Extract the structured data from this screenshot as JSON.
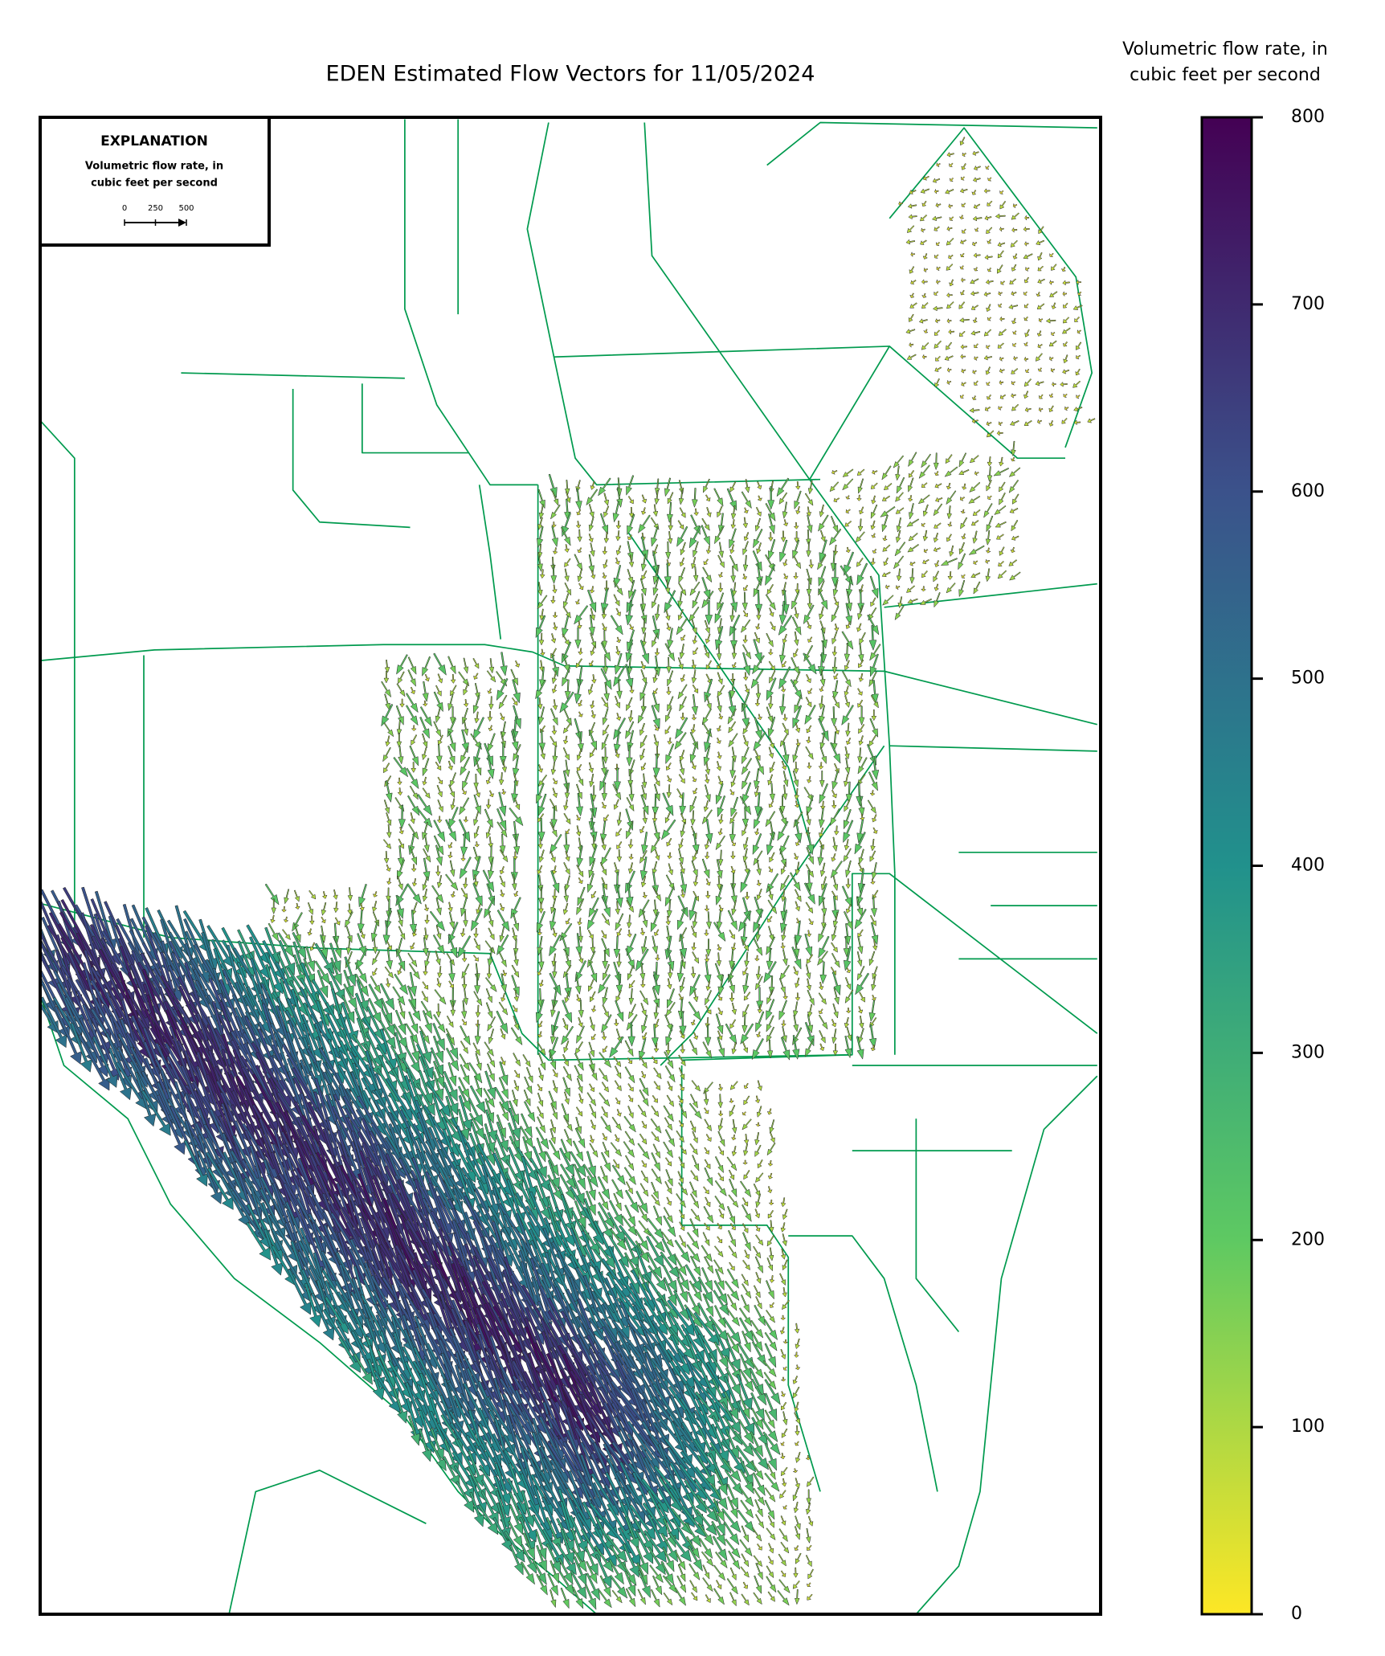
{
  "chart_data": {
    "type": "quiver",
    "title": "EDEN Estimated Flow Vectors for 11/05/2024",
    "colorbar_label": [
      "Volumetric flow rate, in",
      "cubic feet per second"
    ],
    "clim": [
      0,
      800
    ],
    "cticks": [
      0,
      100,
      200,
      300,
      400,
      500,
      600,
      700,
      800
    ],
    "colors": [
      "#fde725",
      "#5ec962",
      "#21918c",
      "#3b528b",
      "#440154"
    ],
    "explanation": {
      "title": "EXPLANATION",
      "label": [
        "Volumetric flow rate, in",
        "cubic feet per second"
      ],
      "scale": [
        0,
        250,
        500
      ]
    }
  }
}
